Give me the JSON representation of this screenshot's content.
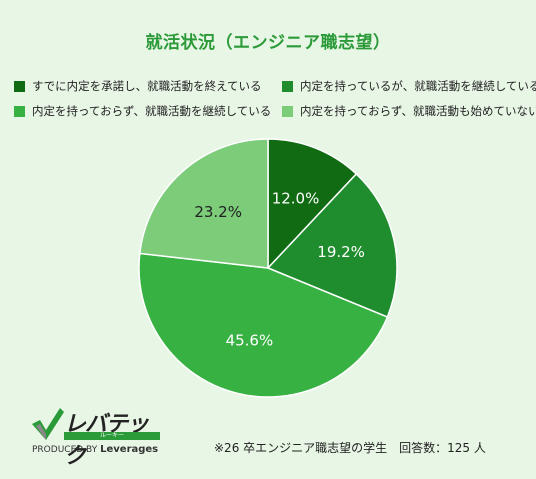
{
  "header": {
    "title": "就活状況（エンジニア職志望）"
  },
  "chart_data": {
    "type": "pie",
    "title": "就活状況（エンジニア職志望）",
    "start_angle_deg": 0,
    "direction": "clockwise",
    "slices": [
      {
        "label": "すでに内定を承諾し、就職活動を終えている",
        "value": 12.0,
        "display": "12.0%",
        "color": "#106b12",
        "text_color": "#ffffff"
      },
      {
        "label": "内定を持っているが、就職活動を継続している",
        "value": 19.2,
        "display": "19.2%",
        "color": "#1f8d2d",
        "text_color": "#ffffff"
      },
      {
        "label": "内定を持っておらず、就職活動を継続している",
        "value": 45.6,
        "display": "45.6%",
        "color": "#37b142",
        "text_color": "#ffffff"
      },
      {
        "label": "内定を持っておらず、就職活動も始めていない",
        "value": 23.2,
        "display": "23.2%",
        "color": "#7ccc7a",
        "text_color": "#222222"
      }
    ],
    "legend_position": "top"
  },
  "footer": {
    "logo_text": "レバテック",
    "logo_sub": "ルーキー",
    "logo_tag_prefix": "PRODUCED BY",
    "logo_tag_brand": "Leverages",
    "note": "※26 卒エンジニア職志望の学生　回答数：125 人"
  }
}
